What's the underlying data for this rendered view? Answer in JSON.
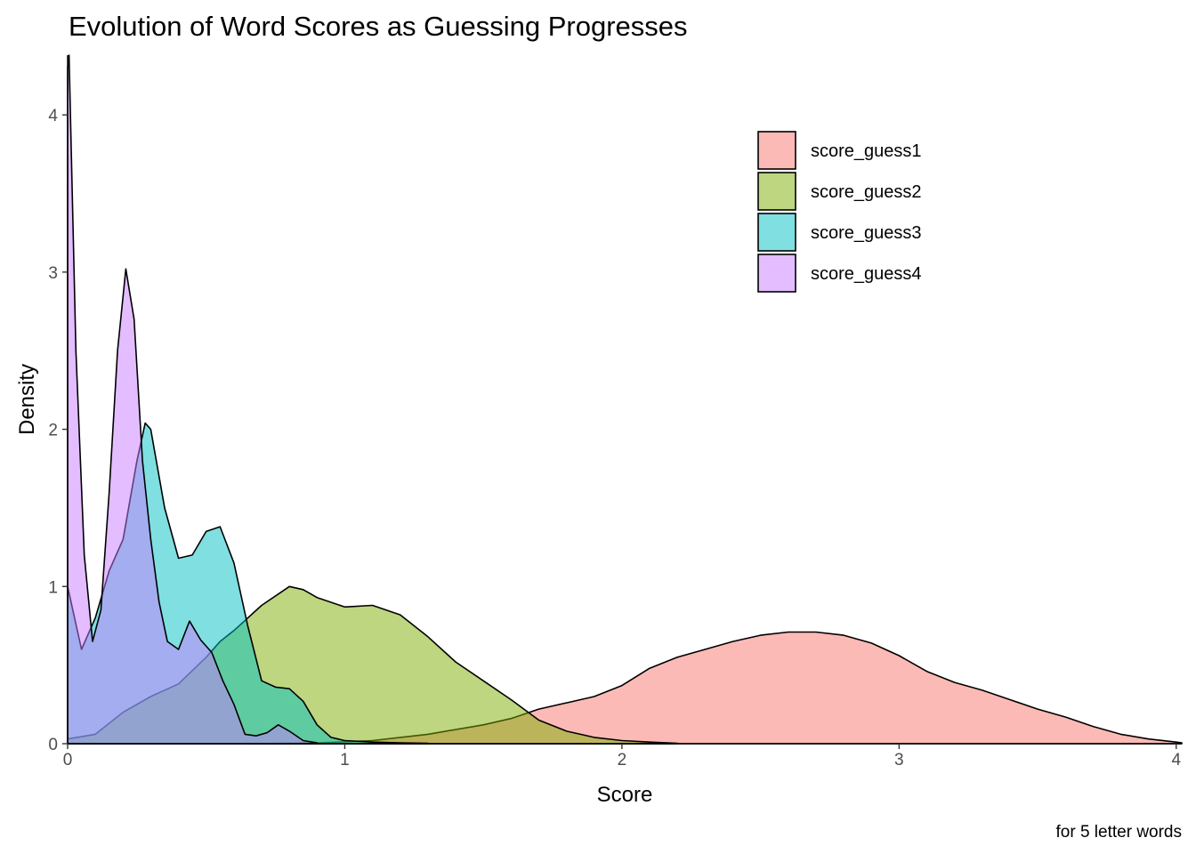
{
  "colors": {
    "score_guess1": "#F8766D",
    "score_guess2": "#7CAE00",
    "score_guess3": "#00BFC4",
    "score_guess4": "#C77CFF"
  },
  "chart_data": {
    "type": "area",
    "title": "Evolution of Word Scores as Guessing Progresses",
    "xlabel": "Score",
    "ylabel": "Density",
    "caption": "for 5 letter words",
    "xlim": [
      0,
      4.02
    ],
    "ylim": [
      0,
      4.38
    ],
    "x_ticks": [
      0,
      1,
      2,
      3,
      4
    ],
    "x_tick_labels": [
      "0",
      "1",
      "2",
      "3",
      "4"
    ],
    "y_ticks": [
      0,
      1,
      2,
      3,
      4
    ],
    "y_tick_labels": [
      "0",
      "1",
      "2",
      "3",
      "4"
    ],
    "grid": false,
    "legend_position": "top-right",
    "fill_alpha": 0.5,
    "series": [
      {
        "name": "score_guess1",
        "x": [
          0.65,
          0.9,
          1.1,
          1.3,
          1.5,
          1.6,
          1.7,
          1.8,
          1.9,
          2.0,
          2.1,
          2.2,
          2.3,
          2.4,
          2.5,
          2.6,
          2.7,
          2.8,
          2.9,
          3.0,
          3.1,
          3.2,
          3.3,
          3.4,
          3.5,
          3.6,
          3.7,
          3.8,
          3.9,
          4.0,
          4.02
        ],
        "y": [
          0,
          0.005,
          0.02,
          0.06,
          0.12,
          0.16,
          0.22,
          0.26,
          0.3,
          0.37,
          0.48,
          0.55,
          0.6,
          0.65,
          0.69,
          0.71,
          0.71,
          0.69,
          0.64,
          0.56,
          0.46,
          0.39,
          0.34,
          0.28,
          0.22,
          0.17,
          0.11,
          0.06,
          0.03,
          0.01,
          0.005
        ]
      },
      {
        "name": "score_guess2",
        "x": [
          0,
          0.1,
          0.2,
          0.3,
          0.4,
          0.5,
          0.55,
          0.6,
          0.7,
          0.8,
          0.85,
          0.9,
          1.0,
          1.1,
          1.2,
          1.3,
          1.4,
          1.5,
          1.6,
          1.7,
          1.8,
          1.9,
          2.0,
          2.1,
          2.2
        ],
        "y": [
          0.03,
          0.06,
          0.2,
          0.3,
          0.38,
          0.55,
          0.65,
          0.72,
          0.88,
          1.0,
          0.98,
          0.93,
          0.87,
          0.88,
          0.82,
          0.68,
          0.52,
          0.4,
          0.28,
          0.15,
          0.08,
          0.04,
          0.02,
          0.01,
          0.003
        ]
      },
      {
        "name": "score_guess3",
        "x": [
          0,
          0.05,
          0.1,
          0.15,
          0.2,
          0.25,
          0.28,
          0.3,
          0.35,
          0.4,
          0.45,
          0.5,
          0.55,
          0.6,
          0.65,
          0.7,
          0.75,
          0.8,
          0.85,
          0.9,
          0.95,
          1.0,
          1.1,
          1.2,
          1.3
        ],
        "y": [
          1.0,
          0.6,
          0.8,
          1.1,
          1.3,
          1.8,
          2.04,
          2.0,
          1.5,
          1.18,
          1.2,
          1.35,
          1.38,
          1.15,
          0.75,
          0.4,
          0.36,
          0.35,
          0.27,
          0.12,
          0.04,
          0.02,
          0.01,
          0.005,
          0.002
        ]
      },
      {
        "name": "score_guess4",
        "x": [
          0,
          0.005,
          0.03,
          0.06,
          0.09,
          0.12,
          0.15,
          0.18,
          0.21,
          0.24,
          0.27,
          0.3,
          0.33,
          0.36,
          0.4,
          0.44,
          0.48,
          0.52,
          0.56,
          0.6,
          0.64,
          0.68,
          0.72,
          0.76,
          0.8,
          0.85,
          0.9
        ],
        "y": [
          4.3,
          4.38,
          2.5,
          1.2,
          0.65,
          0.85,
          1.6,
          2.5,
          3.02,
          2.7,
          1.8,
          1.3,
          0.9,
          0.65,
          0.6,
          0.78,
          0.66,
          0.58,
          0.4,
          0.25,
          0.06,
          0.05,
          0.07,
          0.12,
          0.08,
          0.02,
          0.005
        ]
      }
    ]
  }
}
